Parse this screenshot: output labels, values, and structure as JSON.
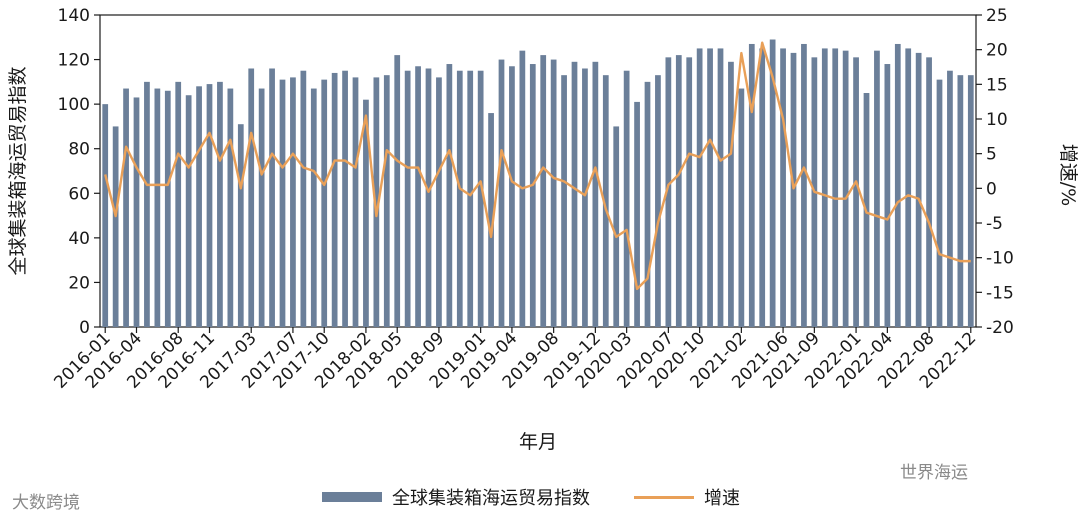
{
  "chart_data": {
    "type": "bar+line",
    "title": "",
    "xlabel": "年月",
    "ylabel": "全球集装箱海运贸易指数",
    "y2label": "增速/%",
    "ylim": [
      0,
      140
    ],
    "yticks": [
      0,
      20,
      40,
      60,
      80,
      100,
      120,
      140
    ],
    "y2lim": [
      -20,
      25
    ],
    "y2ticks": [
      -20,
      -15,
      -10,
      -5,
      0,
      5,
      10,
      15,
      20,
      25
    ],
    "x_tick_labels": [
      "2016-01",
      "2016-04",
      "2016-08",
      "2016-11",
      "2017-03",
      "2017-07",
      "2017-10",
      "2018-02",
      "2018-05",
      "2018-09",
      "2019-01",
      "2019-04",
      "2019-08",
      "2019-12",
      "2020-03",
      "2020-07",
      "2020-10",
      "2021-02",
      "2021-06",
      "2021-09",
      "2022-01",
      "2022-04",
      "2022-08",
      "2022-12"
    ],
    "x_tick_indices": [
      0,
      3,
      7,
      10,
      14,
      18,
      21,
      25,
      28,
      32,
      36,
      39,
      43,
      47,
      50,
      54,
      57,
      61,
      65,
      68,
      72,
      75,
      79,
      83
    ],
    "series": [
      {
        "name": "全球集装箱海运贸易指数",
        "kind": "bar",
        "color": "#6b7f99",
        "values": [
          100,
          90,
          107,
          103,
          110,
          107,
          106,
          110,
          104,
          108,
          109,
          110,
          107,
          91,
          116,
          107,
          116,
          111,
          112,
          115,
          107,
          111,
          114,
          115,
          112,
          102,
          112,
          113,
          122,
          115,
          117,
          116,
          112,
          118,
          115,
          115,
          115,
          96,
          120,
          117,
          124,
          118,
          122,
          120,
          113,
          119,
          116,
          119,
          113,
          90,
          115,
          101,
          110,
          113,
          121,
          122,
          121,
          125,
          125,
          125,
          119,
          107,
          127,
          125,
          129,
          125,
          123,
          127,
          121,
          125,
          125,
          124,
          121,
          105,
          124,
          118,
          127,
          125,
          123,
          121,
          111,
          115,
          113,
          113
        ]
      },
      {
        "name": "增速",
        "kind": "line",
        "axis": "right",
        "color": "#e9a058",
        "values": [
          2,
          -4,
          6,
          3,
          0.5,
          0.5,
          0.5,
          5,
          3,
          5.5,
          8,
          4,
          7,
          0,
          8,
          2,
          5,
          3,
          5,
          3,
          2.5,
          0.5,
          4,
          4,
          3,
          10.5,
          -4,
          5.5,
          4,
          3,
          3,
          -0.5,
          2.5,
          5.5,
          0,
          -1,
          1,
          -7,
          5.5,
          1,
          0,
          0.5,
          3,
          1.5,
          1,
          0,
          -1,
          3,
          -3,
          -7,
          -6,
          -14.5,
          -13,
          -5,
          0.5,
          2,
          5,
          4.5,
          7,
          4,
          5,
          19.5,
          11,
          21,
          16,
          10,
          0,
          3,
          -0.5,
          -1,
          -1.5,
          -1.5,
          1,
          -3.5,
          -4,
          -4.5,
          -2,
          -1,
          -1.5,
          -5,
          -9.5,
          -10,
          -10.5,
          -10.5
        ]
      }
    ],
    "legend_position": "bottom",
    "grid": false
  },
  "legend": {
    "bar_label": "全球集装箱海运贸易指数",
    "line_label": "增速",
    "bar_color": "#6b7f99",
    "line_color": "#e9a058"
  },
  "watermarks": {
    "left": "大数跨境",
    "right": "世界海运"
  }
}
